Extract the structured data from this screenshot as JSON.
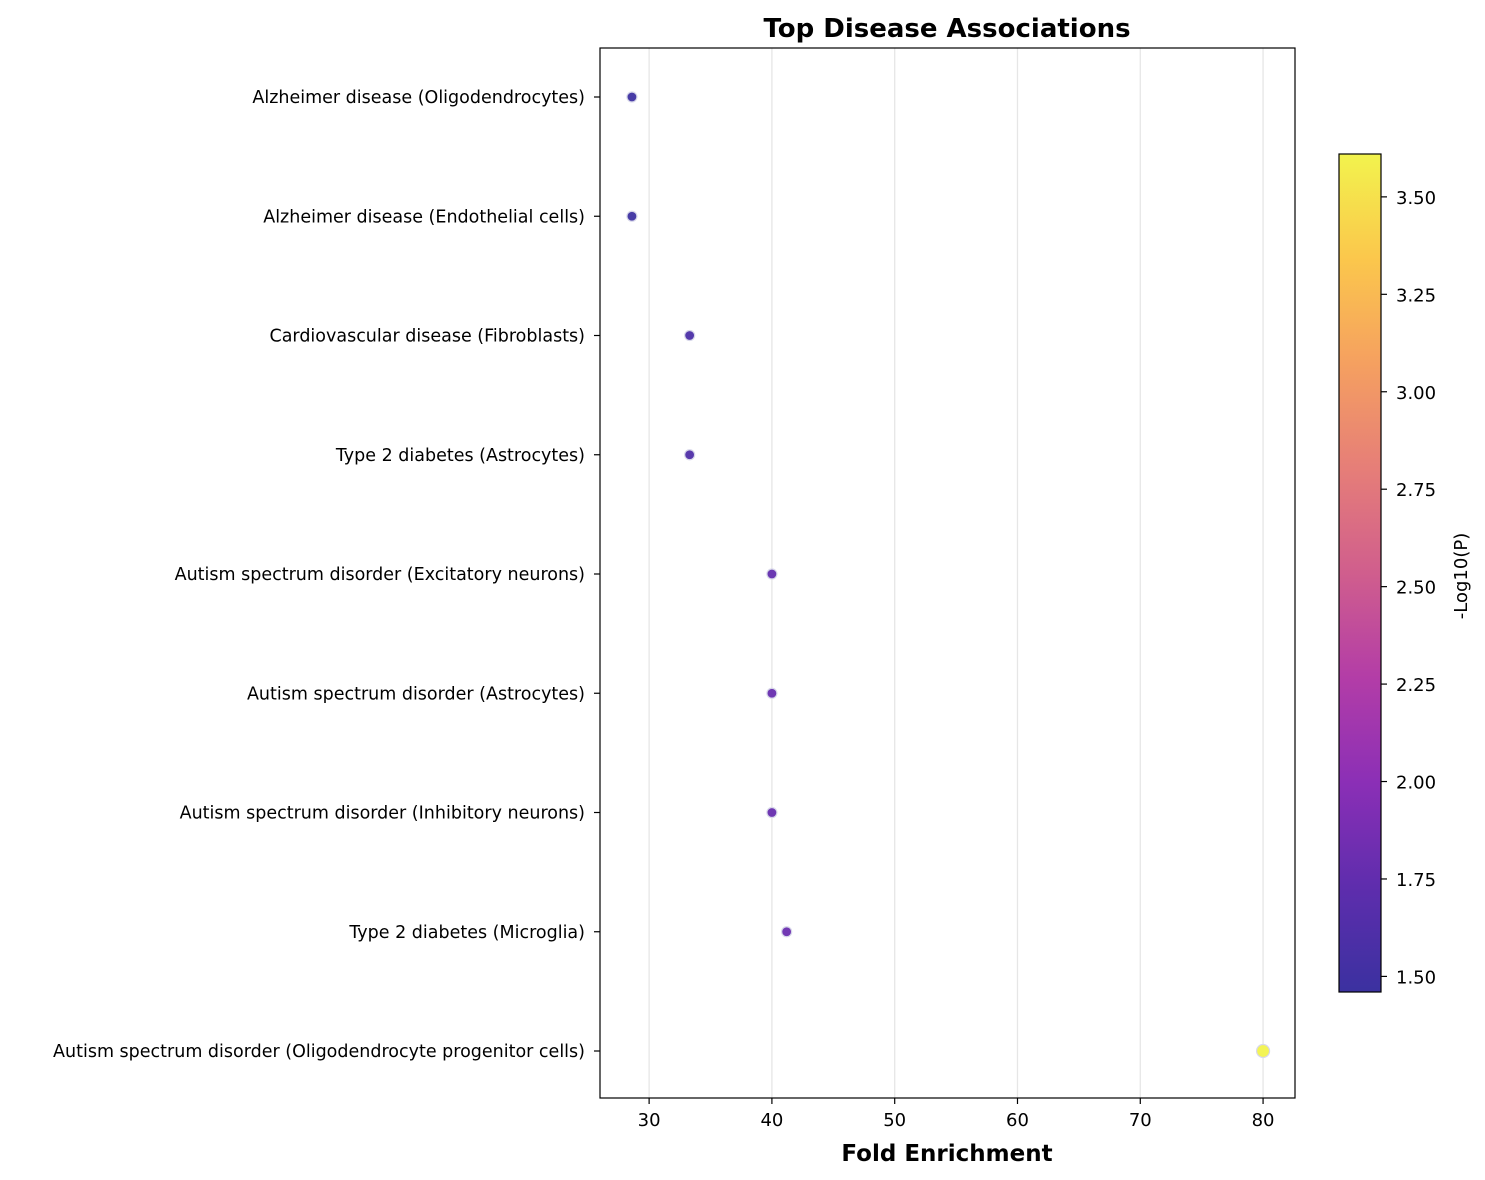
{
  "chart_data": {
    "type": "scatter",
    "title": "Top Disease Associations",
    "xlabel": "Fold Enrichment",
    "ylabel": "",
    "xlim": [
      26,
      82.6
    ],
    "xticks": [
      30,
      40,
      50,
      60,
      70,
      80
    ],
    "grid": "vertical",
    "categories": [
      "Alzheimer disease (Oligodendrocytes)",
      "Alzheimer disease (Endothelial cells)",
      "Cardiovascular disease (Fibroblasts)",
      "Type 2 diabetes (Astrocytes)",
      "Autism spectrum disorder (Excitatory neurons)",
      "Autism spectrum disorder (Astrocytes)",
      "Autism spectrum disorder (Inhibitory neurons)",
      "Type 2 diabetes (Microglia)",
      "Autism spectrum disorder (Oligodendrocyte progenitor cells)"
    ],
    "points": [
      {
        "category": "Alzheimer disease (Oligodendrocytes)",
        "x": 28.6,
        "neglog10p": 1.48
      },
      {
        "category": "Alzheimer disease (Endothelial cells)",
        "x": 28.6,
        "neglog10p": 1.48
      },
      {
        "category": "Cardiovascular disease (Fibroblasts)",
        "x": 33.3,
        "neglog10p": 1.58
      },
      {
        "category": "Type 2 diabetes (Astrocytes)",
        "x": 33.3,
        "neglog10p": 1.62
      },
      {
        "category": "Autism spectrum disorder (Excitatory neurons)",
        "x": 40.0,
        "neglog10p": 1.75
      },
      {
        "category": "Autism spectrum disorder (Astrocytes)",
        "x": 40.0,
        "neglog10p": 1.78
      },
      {
        "category": "Autism spectrum disorder (Inhibitory neurons)",
        "x": 40.0,
        "neglog10p": 1.78
      },
      {
        "category": "Type 2 diabetes (Microglia)",
        "x": 41.2,
        "neglog10p": 1.8
      },
      {
        "category": "Autism spectrum disorder (Oligodendrocyte progenitor cells)",
        "x": 80.0,
        "neglog10p": 3.62
      }
    ],
    "colorbar": {
      "label": "-Log10(P)",
      "colormap": "plasma",
      "range": [
        1.46,
        3.61
      ],
      "ticks": [
        "1.50",
        "1.75",
        "2.00",
        "2.25",
        "2.50",
        "2.75",
        "3.00",
        "3.25",
        "3.50"
      ],
      "colors": [
        "#3b31a0",
        "#5e2dad",
        "#8b2fb6",
        "#b33da7",
        "#d05e8d",
        "#e67e78",
        "#f5a060",
        "#fbc74c",
        "#f2f34d"
      ]
    }
  }
}
